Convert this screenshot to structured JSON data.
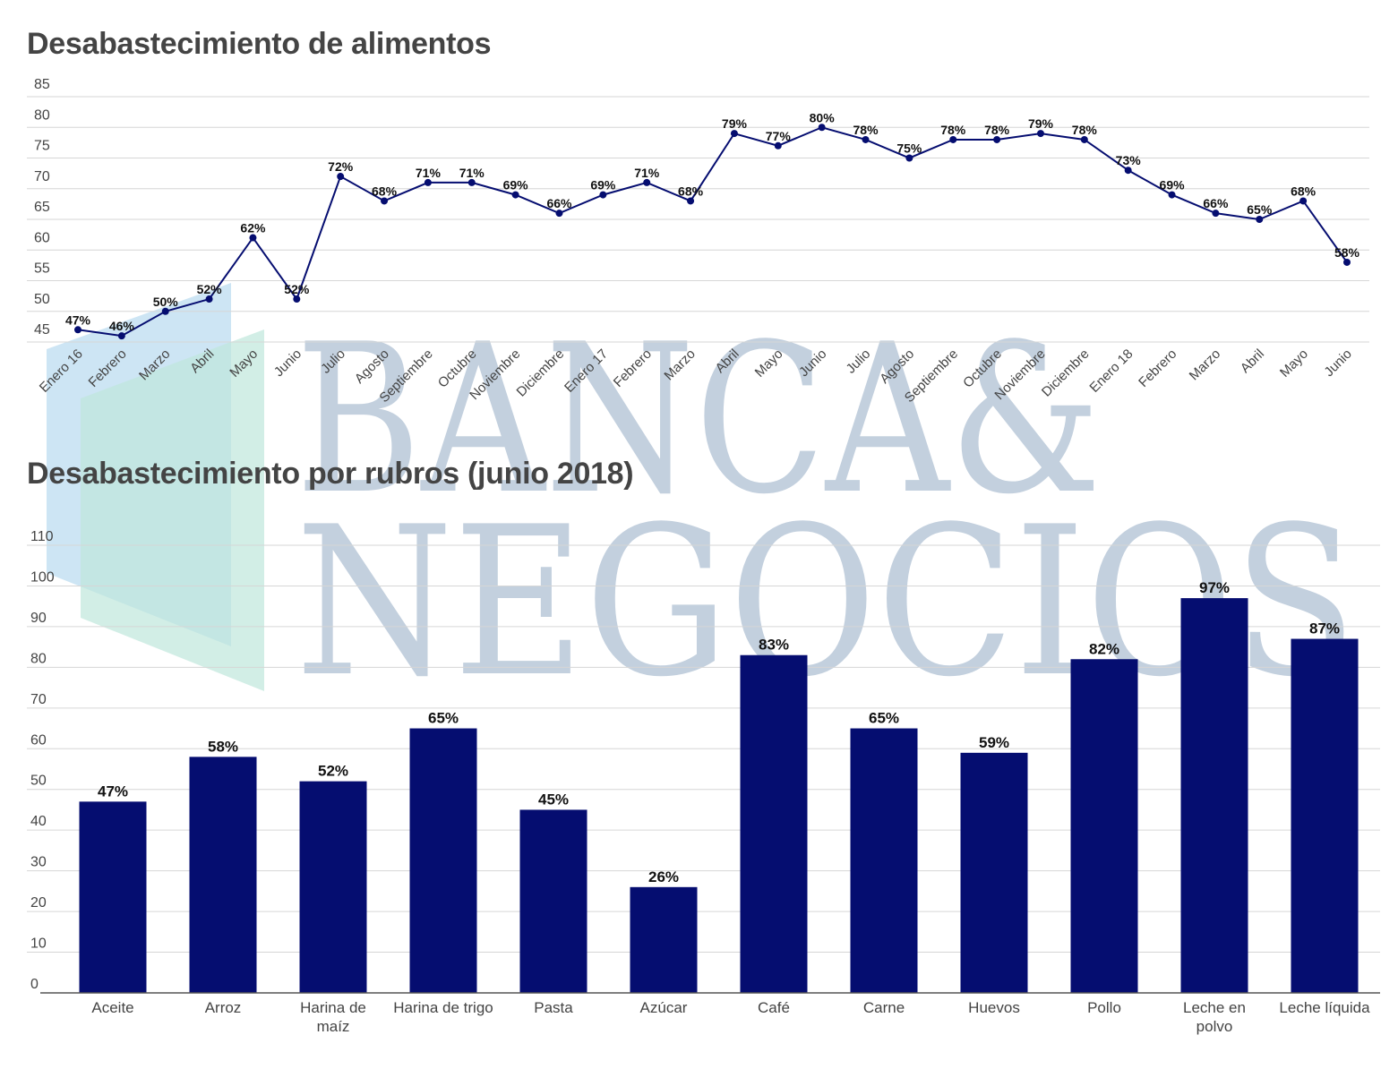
{
  "titles": {
    "line": "Desabastecimiento de alimentos",
    "bar": "Desabastecimiento por rubros (junio 2018)"
  },
  "watermark": {
    "line1": "BANCA&",
    "line2": "NEGOCIOS"
  },
  "colors": {
    "series": "#050d70",
    "grid": "#d6d6d6",
    "title": "#444444",
    "watermark": "#c3d0de"
  },
  "chart_data": [
    {
      "type": "line",
      "title": "Desabastecimiento de alimentos",
      "categories": [
        "Enero 16",
        "Febrero",
        "Marzo",
        "Abril",
        "Mayo",
        "Junio",
        "Julio",
        "Agosto",
        "Septiembre",
        "Octubre",
        "Noviembre",
        "Diciembre",
        "Enero 17",
        "Febrero",
        "Marzo",
        "Abril",
        "Mayo",
        "Junio",
        "Julio",
        "Agosto",
        "Septiembre",
        "Octubre",
        "Noviembre",
        "Diciembre",
        "Enero 18",
        "Febrero",
        "Marzo",
        "Abril",
        "Mayo",
        "Junio"
      ],
      "values": [
        47,
        46,
        50,
        52,
        62,
        52,
        72,
        68,
        71,
        71,
        69,
        66,
        69,
        71,
        68,
        79,
        77,
        80,
        78,
        75,
        78,
        78,
        79,
        78,
        73,
        69,
        66,
        65,
        68,
        58
      ],
      "data_labels": [
        "47%",
        "46%",
        "50%",
        "52%",
        "62%",
        "52%",
        "72%",
        "68%",
        "71%",
        "71%",
        "69%",
        "66%",
        "69%",
        "71%",
        "68%",
        "79%",
        "77%",
        "80%",
        "78%",
        "75%",
        "78%",
        "78%",
        "79%",
        "78%",
        "73%",
        "69%",
        "66%",
        "65%",
        "68%",
        "58%"
      ],
      "yticks": [
        "45",
        "50",
        "55",
        "60",
        "65",
        "70",
        "75",
        "80",
        "85"
      ],
      "ylim": [
        45,
        85
      ],
      "grid": true,
      "legend": "none"
    },
    {
      "type": "bar",
      "title": "Desabastecimiento por rubros (junio 2018)",
      "categories": [
        "Aceite",
        "Arroz",
        "Harina de maíz",
        "Harina de trigo",
        "Pasta",
        "Azúcar",
        "Café",
        "Carne",
        "Huevos",
        "Pollo",
        "Leche en polvo",
        "Leche líquida"
      ],
      "values": [
        47,
        58,
        52,
        65,
        45,
        26,
        83,
        65,
        59,
        82,
        97,
        87
      ],
      "data_labels": [
        "47%",
        "58%",
        "52%",
        "65%",
        "45%",
        "26%",
        "83%",
        "65%",
        "59%",
        "82%",
        "97%",
        "87%"
      ],
      "yticks": [
        "0",
        "10",
        "20",
        "30",
        "40",
        "50",
        "60",
        "70",
        "80",
        "90",
        "100",
        "110"
      ],
      "ylim": [
        0,
        110
      ],
      "grid": true,
      "legend": "none"
    }
  ]
}
